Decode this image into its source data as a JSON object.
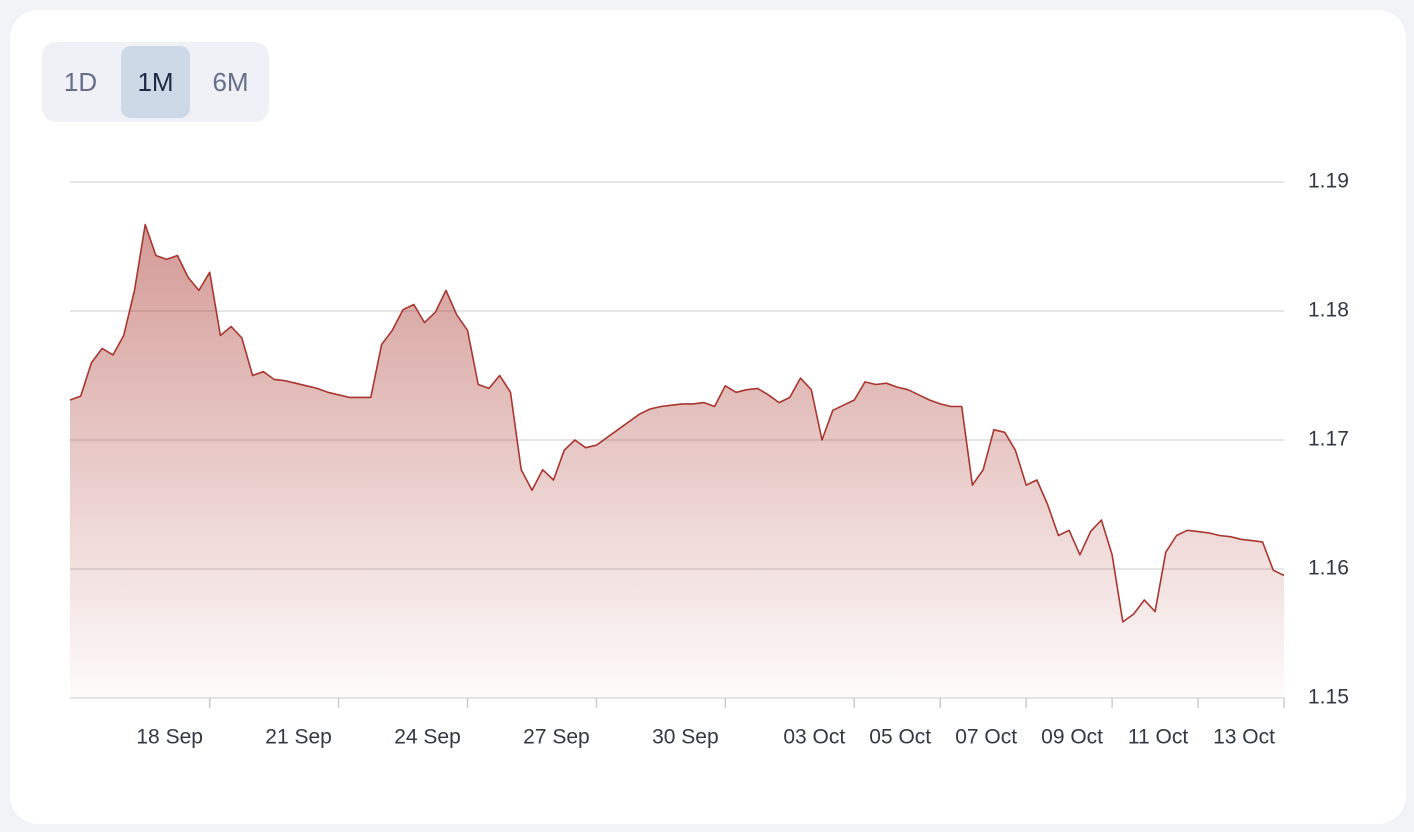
{
  "range_buttons": [
    "1D",
    "1M",
    "6M"
  ],
  "selected_range": 1,
  "chart_data": {
    "type": "area",
    "color": "#a8362e",
    "grid": true,
    "y_axis_side": "right",
    "ylim": [
      1.15,
      1.19
    ],
    "yticks": [
      1.15,
      1.16,
      1.17,
      1.18,
      1.19
    ],
    "categories": [
      null,
      null,
      null,
      null,
      null,
      null,
      null,
      null,
      null,
      null,
      null,
      null,
      null,
      "18 Sep",
      null,
      null,
      null,
      null,
      null,
      null,
      null,
      null,
      null,
      null,
      null,
      "21 Sep",
      null,
      null,
      null,
      null,
      null,
      null,
      null,
      null,
      null,
      null,
      null,
      "24 Sep",
      null,
      null,
      null,
      null,
      null,
      null,
      null,
      null,
      null,
      null,
      null,
      "27 Sep",
      null,
      null,
      null,
      null,
      null,
      null,
      null,
      null,
      null,
      null,
      null,
      "30 Sep",
      null,
      null,
      null,
      null,
      null,
      null,
      null,
      null,
      null,
      null,
      null,
      "03 Oct",
      null,
      null,
      null,
      null,
      null,
      null,
      null,
      "05 Oct",
      null,
      null,
      null,
      null,
      null,
      null,
      null,
      "07 Oct",
      null,
      null,
      null,
      null,
      null,
      null,
      null,
      "09 Oct",
      null,
      null,
      null,
      null,
      null,
      null,
      null,
      "11 Oct",
      null,
      null,
      null,
      null,
      null,
      null,
      null,
      "13 Oct"
    ],
    "values": [
      1.1731,
      1.1734,
      1.176,
      1.1771,
      1.1766,
      1.1781,
      1.1816,
      1.1867,
      1.1843,
      1.184,
      1.1843,
      1.1826,
      1.1816,
      1.183,
      1.1781,
      1.1788,
      1.1779,
      1.175,
      1.1753,
      1.1747,
      1.1746,
      1.1744,
      1.1742,
      1.174,
      1.1737,
      1.1735,
      1.1733,
      1.1733,
      1.1733,
      1.1774,
      1.1785,
      1.1801,
      1.1805,
      1.1791,
      1.1799,
      1.1816,
      1.1797,
      1.1785,
      1.1743,
      1.174,
      1.175,
      1.1737,
      1.1677,
      1.1661,
      1.1677,
      1.1669,
      1.1692,
      1.17,
      1.1694,
      1.1696,
      1.1702,
      1.1708,
      1.1714,
      1.172,
      1.1724,
      1.1726,
      1.1727,
      1.1728,
      1.1728,
      1.1729,
      1.1726,
      1.1742,
      1.1737,
      1.1739,
      1.174,
      1.1735,
      1.1729,
      1.1733,
      1.1748,
      1.1739,
      1.17,
      1.1723,
      1.1727,
      1.1731,
      1.1745,
      1.1743,
      1.1744,
      1.1741,
      1.1739,
      1.1735,
      1.1731,
      1.1728,
      1.1726,
      1.1726,
      1.1665,
      1.1677,
      1.1708,
      1.1706,
      1.1692,
      1.1665,
      1.1669,
      1.165,
      1.1626,
      1.163,
      1.1611,
      1.1629,
      1.1638,
      1.1611,
      1.1559,
      1.1565,
      1.1576,
      1.1567,
      1.1613,
      1.1626,
      1.163,
      1.1629,
      1.1628,
      1.1626,
      1.1625,
      1.1623,
      1.1622,
      1.1621,
      1.1599,
      1.1595
    ]
  }
}
